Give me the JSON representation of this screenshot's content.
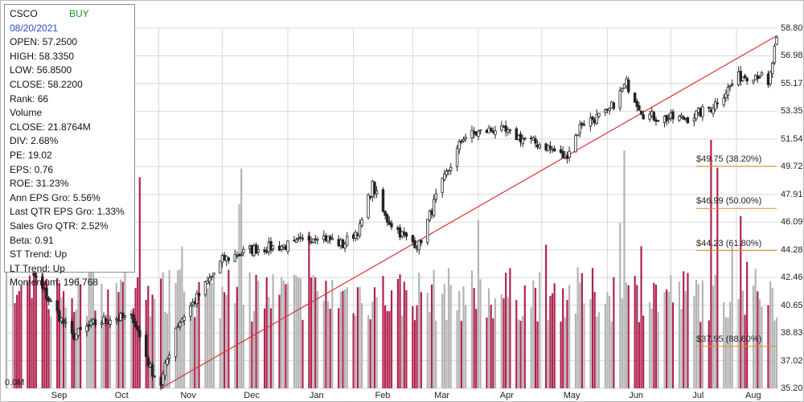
{
  "header": {
    "symbol": "CSCO",
    "signal": "BUY",
    "date": "08/20/2021"
  },
  "stats": [
    {
      "label": "OPEN",
      "value": "57.2500"
    },
    {
      "label": "HIGH",
      "value": "58.3350"
    },
    {
      "label": "LOW",
      "value": "56.8500"
    },
    {
      "label": "CLOSE",
      "value": "58.2200"
    },
    {
      "label": "Rank",
      "value": "66"
    },
    {
      "label": "Volume",
      "value": ""
    },
    {
      "label": "CLOSE",
      "value": "21.8764M"
    },
    {
      "label": "DIV",
      "value": "2.68%"
    },
    {
      "label": "PE",
      "value": "19.02"
    },
    {
      "label": "EPS",
      "value": "0.76"
    },
    {
      "label": "ROE",
      "value": "31.23%"
    },
    {
      "label": "Ann EPS Gro",
      "value": "5.56%"
    },
    {
      "label": "Last QTR EPS Gro",
      "value": "1.33%"
    },
    {
      "label": "Sales Gro QTR",
      "value": "2.52%"
    },
    {
      "label": "Beta",
      "value": "0.91"
    },
    {
      "label": "ST Trend",
      "value": "Up"
    },
    {
      "label": "LT Trend",
      "value": "Up"
    },
    {
      "label": "Momentum",
      "value": "196.768"
    }
  ],
  "colors": {
    "candle": "#222222",
    "grid": "#d8d8d8",
    "trendline": "#e03030",
    "fib_line": "#e08a2a",
    "volume_down": "#b0234d",
    "volume_up": "#b4b4b4",
    "buy_signal": "#1a9a1a",
    "date": "#2a48c8"
  },
  "chart_data": {
    "type": "candlestick",
    "price_axis": {
      "ticks": [
        "58.80",
        "56.98",
        "55.17",
        "53.35",
        "51.54",
        "49.72",
        "47.91",
        "46.09",
        "44.28",
        "42.46",
        "40.65",
        "38.83",
        "37.02",
        "35.20"
      ],
      "range": [
        35.2,
        58.8
      ]
    },
    "volume_axis": {
      "ticks": [
        "0.0M",
        "21.79",
        "43.58"
      ],
      "range_millions": [
        0,
        65.37
      ]
    },
    "x_ticks": [
      "Sep",
      "Oct",
      "Nov",
      "Dec",
      "Jan",
      "Feb",
      "Mar",
      "Apr",
      "May",
      "Jun",
      "Jul",
      "Aug"
    ],
    "grid": true,
    "close_path": [
      {
        "date": "2020-08-24",
        "close": 47.3
      },
      {
        "date": "2020-09-01",
        "close": 43.0
      },
      {
        "date": "2020-09-10",
        "close": 41.0
      },
      {
        "date": "2020-09-21",
        "close": 38.6
      },
      {
        "date": "2020-10-01",
        "close": 39.4
      },
      {
        "date": "2020-10-09",
        "close": 39.8
      },
      {
        "date": "2020-10-20",
        "close": 39.8
      },
      {
        "date": "2020-10-28",
        "close": 36.5
      },
      {
        "date": "2020-11-02",
        "close": 35.5
      },
      {
        "date": "2020-11-09",
        "close": 39.2
      },
      {
        "date": "2020-11-13",
        "close": 40.0
      },
      {
        "date": "2020-11-20",
        "close": 41.3
      },
      {
        "date": "2020-12-01",
        "close": 43.6
      },
      {
        "date": "2020-12-15",
        "close": 44.3
      },
      {
        "date": "2021-01-04",
        "close": 44.6
      },
      {
        "date": "2021-01-15",
        "close": 45.3
      },
      {
        "date": "2021-01-27",
        "close": 44.6
      },
      {
        "date": "2021-02-04",
        "close": 45.7
      },
      {
        "date": "2021-02-10",
        "close": 48.5
      },
      {
        "date": "2021-02-16",
        "close": 46.4
      },
      {
        "date": "2021-02-26",
        "close": 45.0
      },
      {
        "date": "2021-03-04",
        "close": 44.6
      },
      {
        "date": "2021-03-12",
        "close": 47.7
      },
      {
        "date": "2021-03-25",
        "close": 51.7
      },
      {
        "date": "2021-04-09",
        "close": 52.2
      },
      {
        "date": "2021-04-23",
        "close": 51.5
      },
      {
        "date": "2021-05-04",
        "close": 51.0
      },
      {
        "date": "2021-05-12",
        "close": 50.3
      },
      {
        "date": "2021-05-20",
        "close": 52.6
      },
      {
        "date": "2021-06-01",
        "close": 53.2
      },
      {
        "date": "2021-06-10",
        "close": 55.2
      },
      {
        "date": "2021-06-18",
        "close": 53.2
      },
      {
        "date": "2021-06-25",
        "close": 52.9
      },
      {
        "date": "2021-07-09",
        "close": 52.9
      },
      {
        "date": "2021-07-20",
        "close": 53.6
      },
      {
        "date": "2021-08-02",
        "close": 55.6
      },
      {
        "date": "2021-08-12",
        "close": 55.8
      },
      {
        "date": "2021-08-16",
        "close": 54.9
      },
      {
        "date": "2021-08-20",
        "close": 58.2
      }
    ],
    "trendline": [
      {
        "date": "2020-11-02",
        "value": 35.2
      },
      {
        "date": "2021-08-20",
        "value": 58.3
      }
    ],
    "fibonacci_levels": [
      {
        "label": "$49.75 (38.20%)",
        "value": 49.75
      },
      {
        "label": "$46.99 (50.00%)",
        "value": 46.99
      },
      {
        "label": "$44.23 (61.80%)",
        "value": 44.23
      },
      {
        "label": "$37.95 (88.60%)",
        "value": 37.95
      }
    ]
  }
}
